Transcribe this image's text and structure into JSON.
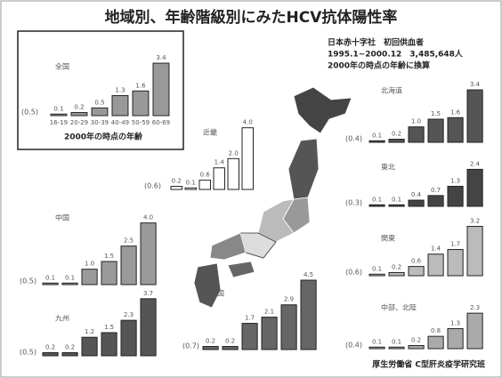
{
  "header": {
    "title": "地域別、年齢階級別にみたHCV抗体陽性率",
    "lines": [
      "日本赤十字社　初回供血者",
      "1995.1~2000.12　3,485,648人",
      "2000年の時点の年齢に換算"
    ]
  },
  "footer": "厚生労働省 C型肝炎疫学研究班",
  "chart_data": [
    {
      "type": "bar",
      "title": "全国",
      "average": "(0.5)",
      "categories": [
        "16-19",
        "20-29",
        "30-39",
        "40-49",
        "50-59",
        "60-69"
      ],
      "xlabel": "2000年の時点の年齢",
      "values": [
        0.1,
        0.2,
        0.5,
        1.3,
        1.6,
        3.4
      ],
      "value_labels": [
        "0.1",
        "0.2",
        "0.5",
        "1.3",
        "1.6",
        "3.4"
      ],
      "color": "#999999",
      "ylim": [
        0,
        4.5
      ]
    },
    {
      "type": "bar",
      "title": "近畿",
      "average": "(0.6)",
      "values": [
        0.2,
        0.1,
        0.6,
        1.4,
        2.0,
        4.0
      ],
      "value_labels": [
        "0.2",
        "0.1",
        "0.6",
        "1.4",
        "2.0",
        "4.0"
      ],
      "color": "#ffffff",
      "ylim": [
        0,
        4.5
      ]
    },
    {
      "type": "bar",
      "title": "北海道",
      "average": "(0.4)",
      "values": [
        0.1,
        0.2,
        1.0,
        1.5,
        1.6,
        3.4
      ],
      "value_labels": [
        "0.1",
        "0.2",
        "1.0",
        "1.5",
        "1.6",
        "3.4"
      ],
      "color": "#555555",
      "ylim": [
        0,
        4.5
      ]
    },
    {
      "type": "bar",
      "title": "東北",
      "average": "(0.3)",
      "values": [
        0.1,
        0.1,
        0.4,
        0.7,
        1.3,
        2.4
      ],
      "value_labels": [
        "0.1",
        "0.1",
        "0.4",
        "0.7",
        "1.3",
        "2.4"
      ],
      "color": "#444444",
      "ylim": [
        0,
        4.5
      ]
    },
    {
      "type": "bar",
      "title": "関東",
      "average": "(0.6)",
      "values": [
        0.1,
        0.2,
        0.6,
        1.4,
        1.7,
        3.2
      ],
      "value_labels": [
        "0.1",
        "0.2",
        "0.6",
        "1.4",
        "1.7",
        "3.2"
      ],
      "color": "#bbbbbb",
      "ylim": [
        0,
        4.5
      ]
    },
    {
      "type": "bar",
      "title": "中部、北陸",
      "average": "(0.4)",
      "values": [
        0.1,
        0.1,
        0.2,
        0.8,
        1.3,
        2.3
      ],
      "value_labels": [
        "0.1",
        "0.1",
        "0.2",
        "0.8",
        "1.3",
        "2.3"
      ],
      "color": "#aaaaaa",
      "ylim": [
        0,
        4.5
      ]
    },
    {
      "type": "bar",
      "title": "中国",
      "average": "(0.5)",
      "values": [
        0.1,
        0.1,
        1.0,
        1.5,
        2.5,
        4.0
      ],
      "value_labels": [
        "0.1",
        "0.1",
        "1.0",
        "1.5",
        "2.5",
        "4.0"
      ],
      "color": "#9a9a9a",
      "ylim": [
        0,
        4.5
      ]
    },
    {
      "type": "bar",
      "title": "九州",
      "average": "(0.5)",
      "values": [
        0.2,
        0.2,
        1.2,
        1.5,
        2.3,
        3.7
      ],
      "value_labels": [
        "0.2",
        "0.2",
        "1.2",
        "1.5",
        "2.3",
        "3.7"
      ],
      "color": "#555555",
      "ylim": [
        0,
        4.5
      ]
    },
    {
      "type": "bar",
      "title": "四国",
      "average": "(0.7)",
      "values": [
        0.2,
        0.2,
        1.7,
        2.1,
        2.9,
        4.5
      ],
      "value_labels": [
        "0.2",
        "0.2",
        "1.7",
        "2.1",
        "2.9",
        "4.5"
      ],
      "color": "#666666",
      "ylim": [
        0,
        4.5
      ]
    }
  ]
}
